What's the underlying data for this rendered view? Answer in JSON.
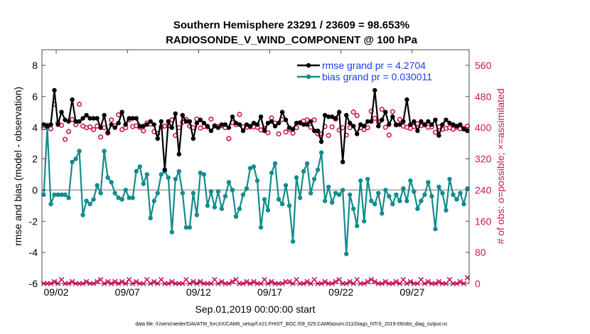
{
  "chart_data": {
    "type": "line",
    "title": "Southern Hemisphere 23291 / 23609 = 98.653%",
    "subtitle": "RADIOSONDE_V_WIND_COMPONENT @ 100 hPa",
    "xlabel": "Sep.01,2019 00:00:00 start",
    "ylabel": "rmse and bias (model - observation)",
    "ylabel_right": "# of obs: o=possible; ×=assimilated",
    "footnote": "data file: /Users/raeder/DAI/ATM_forcXX/CAM6_setup/f.e21.FHIST_BGC.f09_025.CAM6assim.011/Diags_NTrS_2019-09/obs_diag_output.nc",
    "xlim": [
      1.0,
      31.0
    ],
    "ylim": [
      -6,
      9
    ],
    "ylim_right": [
      0,
      600
    ],
    "xticks": [
      2,
      7,
      12,
      17,
      22,
      27
    ],
    "xtick_labels": [
      "09/02",
      "09/07",
      "09/12",
      "09/17",
      "09/22",
      "09/27"
    ],
    "yticks": [
      -6,
      -4,
      -2,
      0,
      2,
      4,
      6,
      8
    ],
    "yticks_right": [
      0,
      80,
      160,
      240,
      320,
      400,
      480,
      560
    ],
    "colors": {
      "rmse": "#000000",
      "bias": "#138c8c",
      "obs": "#d4125e",
      "zero": "#c0c0c0",
      "legend_text": "#1a3ef0"
    },
    "legend": [
      {
        "name": "rmse grand pr = 4.2704",
        "key": "rmse"
      },
      {
        "name": "bias grand pr = 0.030011",
        "key": "bias"
      }
    ],
    "x": [
      1.125,
      1.375,
      1.625,
      1.875,
      2.125,
      2.375,
      2.625,
      2.875,
      3.125,
      3.375,
      3.625,
      3.875,
      4.125,
      4.375,
      4.625,
      4.875,
      5.125,
      5.375,
      5.625,
      5.875,
      6.125,
      6.375,
      6.625,
      6.875,
      7.125,
      7.375,
      7.625,
      7.875,
      8.125,
      8.375,
      8.625,
      8.875,
      9.125,
      9.375,
      9.625,
      9.875,
      10.125,
      10.375,
      10.625,
      10.875,
      11.125,
      11.375,
      11.625,
      11.875,
      12.125,
      12.375,
      12.625,
      12.875,
      13.125,
      13.375,
      13.625,
      13.875,
      14.125,
      14.375,
      14.625,
      14.875,
      15.125,
      15.375,
      15.625,
      15.875,
      16.125,
      16.375,
      16.625,
      16.875,
      17.125,
      17.375,
      17.625,
      17.875,
      18.125,
      18.375,
      18.625,
      18.875,
      19.125,
      19.375,
      19.625,
      19.875,
      20.125,
      20.375,
      20.625,
      20.875,
      21.125,
      21.375,
      21.625,
      21.875,
      22.125,
      22.375,
      22.625,
      22.875,
      23.125,
      23.375,
      23.625,
      23.875,
      24.125,
      24.375,
      24.625,
      24.875,
      25.125,
      25.375,
      25.625,
      25.875,
      26.125,
      26.375,
      26.625,
      26.875,
      27.125,
      27.375,
      27.625,
      27.875,
      28.125,
      28.375,
      28.625,
      28.875,
      29.125,
      29.375,
      29.625,
      29.875,
      30.125,
      30.375,
      30.625,
      30.875
    ],
    "series": [
      {
        "name": "rmse",
        "values": [
          4.2,
          4.1,
          4.2,
          6.4,
          4.2,
          5.0,
          4.5,
          4.4,
          5.8,
          4.4,
          4.4,
          4.6,
          4.8,
          4.6,
          4.6,
          4.6,
          4.0,
          4.8,
          3.7,
          4.2,
          4.0,
          4.3,
          5.0,
          4.2,
          4.6,
          4.6,
          4.6,
          4.1,
          4.1,
          4.2,
          4.4,
          4.2,
          3.3,
          4.4,
          1.3,
          4.4,
          4.0,
          4.9,
          2.3,
          4.8,
          4.4,
          4.4,
          3.3,
          4.3,
          4.5,
          4.3,
          4.1,
          3.8,
          4.1,
          4.0,
          4.2,
          4.2,
          4.0,
          4.7,
          4.3,
          4.2,
          3.8,
          4.2,
          4.1,
          4.3,
          4.2,
          4.7,
          3.8,
          4.3,
          4.4,
          4.1,
          4.3,
          5.0,
          4.5,
          4.0,
          3.9,
          4.3,
          4.3,
          4.2,
          4.2,
          4.4,
          3.8,
          3.8,
          3.1,
          4.8,
          4.7,
          4.7,
          4.6,
          5.0,
          1.8,
          4.8,
          4.3,
          4.1,
          3.6,
          4.2,
          4.1,
          4.4,
          4.4,
          6.4,
          4.1,
          4.5,
          5.0,
          4.2,
          4.7,
          4.2,
          4.2,
          4.4,
          5.8,
          4.2,
          4.4,
          3.8,
          4.4,
          4.2,
          4.4,
          4.2,
          4.5,
          3.5,
          4.2,
          4.5,
          4.3,
          4.2,
          4.1,
          4.2,
          3.9,
          3.8
        ]
      },
      {
        "name": "bias",
        "values": [
          -0.3,
          4.0,
          -0.9,
          -0.3,
          -0.3,
          -0.3,
          -0.3,
          -0.5,
          1.8,
          2.0,
          2.5,
          -1.6,
          -0.7,
          -0.9,
          -0.6,
          0.3,
          -0.2,
          2.5,
          0.8,
          0.5,
          -0.2,
          -0.5,
          -0.6,
          0.0,
          -0.5,
          -0.5,
          1.2,
          1.5,
          0.4,
          1.0,
          -1.8,
          -0.7,
          -0.2,
          1.0,
          1.2,
          0.8,
          -2.7,
          0.7,
          1.2,
          -0.2,
          -2.4,
          -2.4,
          -0.2,
          -1.6,
          1.1,
          1.0,
          -1.0,
          -0.1,
          -1.1,
          -0.1,
          -1.2,
          -0.4,
          0.5,
          0.0,
          -1.7,
          -1.2,
          -0.3,
          0.1,
          1.4,
          1.5,
          0.6,
          -2.4,
          -0.6,
          -1.3,
          1.1,
          1.7,
          -0.6,
          -0.9,
          0.3,
          -1.0,
          -3.3,
          0.8,
          -0.5,
          1.2,
          1.7,
          -0.2,
          0.7,
          1.3,
          2.4,
          -0.7,
          0.2,
          -0.8,
          -0.2,
          -0.3,
          0.0,
          -4.1,
          -0.3,
          -1.2,
          -2.3,
          0.6,
          -2.0,
          0.7,
          -0.7,
          -0.9,
          -0.2,
          -1.5,
          0.0,
          -0.4,
          -0.9,
          -0.3,
          -0.7,
          0.1,
          -0.7,
          0.6,
          -0.1,
          -1.2,
          -0.7,
          -0.3,
          0.5,
          -0.4,
          -2.5,
          0.2,
          -0.2,
          -1.3,
          0.7,
          -0.3,
          -0.6,
          -0.2,
          -0.9,
          0.1
        ]
      },
      {
        "name": "obs_possible",
        "values": [
          400,
          406,
          397,
          460,
          413,
          406,
          370,
          390,
          421,
          408,
          460,
          404,
          400,
          402,
          395,
          404,
          376,
          400,
          386,
          420,
          405,
          433,
          395,
          400,
          420,
          403,
          405,
          401,
          392,
          412,
          409,
          390,
          385,
          402,
          404,
          405,
          420,
          380,
          400,
          414,
          421,
          404,
          400,
          422,
          399,
          403,
          402,
          422,
          405,
          403,
          405,
          400,
          372,
          413,
          408,
          434,
          402,
          401,
          402,
          402,
          401,
          394,
          398,
          387,
          425,
          412,
          384,
          421,
          389,
          396,
          386,
          400,
          413,
          417,
          420,
          401,
          420,
          384,
          384,
          403,
          380,
          402,
          422,
          394,
          400,
          381,
          400,
          440,
          431,
          400,
          395,
          400,
          442,
          424,
          415,
          447,
          401,
          381,
          441,
          407,
          421,
          404,
          401,
          398,
          403,
          410,
          405,
          407,
          401,
          402,
          388,
          402,
          396,
          398,
          400,
          396,
          401,
          397,
          398,
          404
        ]
      },
      {
        "name": "obs_assimilated",
        "values": [
          0,
          0,
          0,
          5,
          0,
          10,
          0,
          0,
          5,
          0,
          0,
          0,
          5,
          0,
          0,
          5,
          10,
          0,
          5,
          0,
          5,
          0,
          5,
          0,
          10,
          0,
          5,
          0,
          0,
          10,
          0,
          5,
          0,
          10,
          0,
          0,
          5,
          0,
          0,
          0,
          10,
          0,
          5,
          0,
          5,
          0,
          0,
          0,
          10,
          0,
          5,
          0,
          0,
          5,
          10,
          0,
          0,
          5,
          0,
          5,
          0,
          0,
          10,
          0,
          5,
          0,
          0,
          0,
          5,
          5,
          0,
          10,
          0,
          0,
          5,
          0,
          10,
          0,
          0,
          5,
          0,
          0,
          5,
          10,
          0,
          0,
          5,
          0,
          10,
          0,
          0,
          5,
          10,
          5,
          0,
          0,
          5,
          0,
          0,
          5,
          0,
          10,
          0,
          5,
          0,
          0,
          10,
          0,
          5,
          0,
          0,
          5,
          0,
          0,
          10,
          0,
          0,
          5,
          0,
          15
        ]
      }
    ]
  }
}
